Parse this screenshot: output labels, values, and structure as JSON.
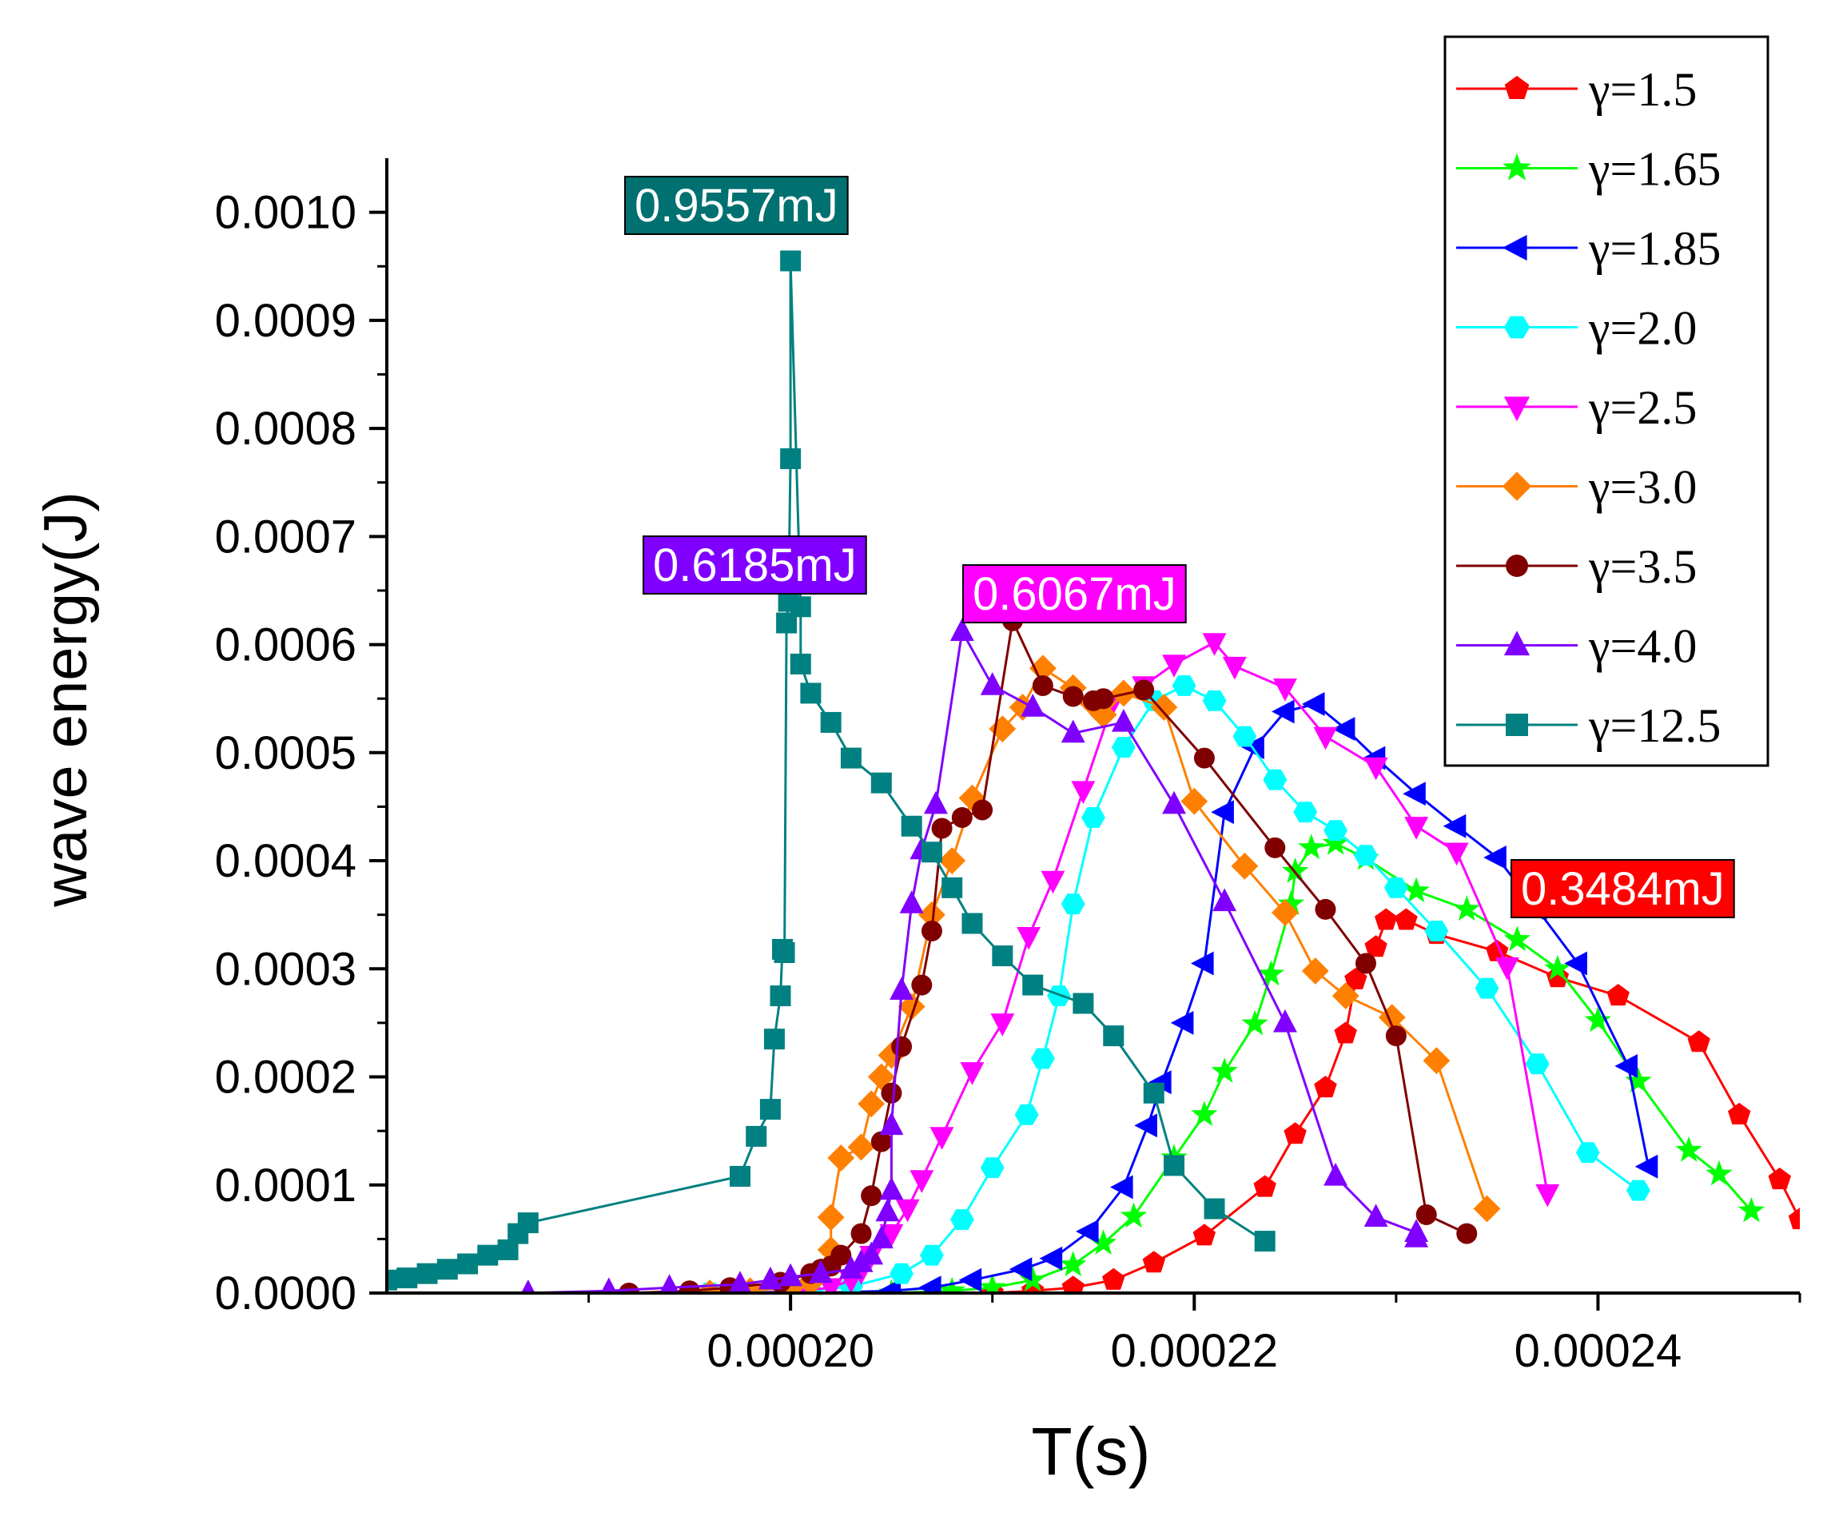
{
  "chart_data": {
    "type": "line",
    "xlabel": "T(s)",
    "ylabel": "wave energy(J)",
    "xlim": [
      0.00018,
      0.00025
    ],
    "ylim": [
      0,
      0.00105
    ],
    "x_ticks": [
      "0.00020",
      "0.00022",
      "0.00024"
    ],
    "x_tick_values": [
      0.0002,
      0.00022,
      0.00024
    ],
    "y_ticks": [
      "0.0000",
      "0.0001",
      "0.0002",
      "0.0003",
      "0.0004",
      "0.0005",
      "0.0006",
      "0.0007",
      "0.0008",
      "0.0009",
      "0.0010"
    ],
    "y_tick_values": [
      0,
      0.0001,
      0.0002,
      0.0003,
      0.0004,
      0.0005,
      0.0006,
      0.0007,
      0.0008,
      0.0009,
      0.001
    ],
    "legend_position": "top-right",
    "series": [
      {
        "name": "γ=1.5",
        "color": "#ff0000",
        "marker": "pentagon",
        "x": [
          0.00021,
          0.000212,
          0.000214,
          0.000216,
          0.000218,
          0.0002205,
          0.0002235,
          0.000225,
          0.0002265,
          0.0002275,
          0.000228,
          0.000229,
          0.0002295,
          0.0002305,
          0.000232,
          0.000235,
          0.000238,
          0.000241,
          0.000245,
          0.000247,
          0.000249,
          0.00025
        ],
        "y": [
          0,
          2e-06,
          5e-06,
          1.2e-05,
          2.8e-05,
          5.3e-05,
          9.8e-05,
          0.000147,
          0.00019,
          0.00024,
          0.00029,
          0.00032,
          0.000345,
          0.000345,
          0.000332,
          0.000316,
          0.000292,
          0.000275,
          0.000232,
          0.000165,
          0.000105,
          6.8e-05
        ]
      },
      {
        "name": "γ=1.65",
        "color": "#00ff00",
        "marker": "star",
        "x": [
          0.000205,
          0.000208,
          0.00021,
          0.000212,
          0.000214,
          0.0002155,
          0.000217,
          0.000219,
          0.0002205,
          0.0002215,
          0.000223,
          0.0002238,
          0.0002248,
          0.000225,
          0.0002258,
          0.000227,
          0.0002285,
          0.000231,
          0.0002335,
          0.000236,
          0.000238,
          0.00024,
          0.000242,
          0.0002445,
          0.000246,
          0.0002476
        ],
        "y": [
          0,
          2e-06,
          5e-06,
          1.2e-05,
          2.6e-05,
          4.6e-05,
          7.1e-05,
          0.000125,
          0.000165,
          0.000205,
          0.000249,
          0.000295,
          0.00036,
          0.00039,
          0.000412,
          0.000416,
          0.000402,
          0.000372,
          0.000355,
          0.000327,
          0.0003,
          0.000252,
          0.000196,
          0.000132,
          0.00011,
          7.6e-05
        ]
      },
      {
        "name": "γ=1.85",
        "color": "#0000ff",
        "marker": "tri-left",
        "x": [
          0.000201,
          0.000205,
          0.000207,
          0.000209,
          0.0002115,
          0.000213,
          0.0002148,
          0.0002165,
          0.0002177,
          0.0002184,
          0.0002195,
          0.0002205,
          0.0002215,
          0.000223,
          0.0002245,
          0.000226,
          0.0002275,
          0.000229,
          0.000231,
          0.000233,
          0.000235,
          0.000237,
          0.000239,
          0.0002415,
          0.0002425
        ],
        "y": [
          0,
          2e-06,
          5e-06,
          1.2e-05,
          2.2e-05,
          3.2e-05,
          5.7e-05,
          9.8e-05,
          0.000155,
          0.000195,
          0.00025,
          0.000305,
          0.000445,
          0.000505,
          0.000538,
          0.000545,
          0.000522,
          0.000495,
          0.000462,
          0.000432,
          0.000403,
          0.000355,
          0.000305,
          0.00021,
          0.000117
        ]
      },
      {
        "name": "γ=2.0",
        "color": "#00ffff",
        "marker": "hexagon",
        "x": [
          0.000196,
          0.000201,
          0.000203,
          0.0002055,
          0.000207,
          0.0002085,
          0.00021,
          0.0002117,
          0.0002125,
          0.0002133,
          0.000214,
          0.000215,
          0.0002165,
          0.000218,
          0.0002195,
          0.000221,
          0.0002225,
          0.000224,
          0.0002255,
          0.000227,
          0.0002285,
          0.00023,
          0.000232,
          0.0002345,
          0.000237,
          0.0002395,
          0.000242
        ],
        "y": [
          0,
          2e-06,
          6e-06,
          1.8e-05,
          3.5e-05,
          6.8e-05,
          0.000116,
          0.000165,
          0.000217,
          0.000275,
          0.00036,
          0.00044,
          0.000505,
          0.000548,
          0.000562,
          0.000548,
          0.000515,
          0.000475,
          0.000445,
          0.000428,
          0.000405,
          0.000375,
          0.000335,
          0.000282,
          0.000212,
          0.00013,
          9.5e-05
        ]
      },
      {
        "name": "γ=2.5",
        "color": "#ff00ff",
        "marker": "tri-down",
        "x": [
          0.000198,
          0.0002005,
          0.000202,
          0.000203,
          0.0002035,
          0.000204,
          0.000205,
          0.0002058,
          0.0002065,
          0.0002075,
          0.000209,
          0.0002105,
          0.0002118,
          0.000213,
          0.0002145,
          0.000216,
          0.0002175,
          0.000219,
          0.000221,
          0.000222,
          0.0002245,
          0.0002265,
          0.000229,
          0.000231,
          0.000233,
          0.0002355,
          0.0002375
        ],
        "y": [
          0,
          2e-06,
          5e-06,
          1.2e-05,
          2e-05,
          3.5e-05,
          5.5e-05,
          7.8e-05,
          0.000105,
          0.000145,
          0.000205,
          0.00025,
          0.00033,
          0.000382,
          0.000465,
          0.000548,
          0.000562,
          0.000582,
          0.000602,
          0.00058,
          0.00056,
          0.000515,
          0.000487,
          0.000432,
          0.000408,
          0.000302,
          9.2e-05
        ]
      },
      {
        "name": "γ=3.0",
        "color": "#ff8000",
        "marker": "diamond",
        "x": [
          0.000196,
          0.000198,
          0.0002,
          0.000201,
          0.0002015,
          0.000202,
          0.000202,
          0.0002025,
          0.0002035,
          0.000204,
          0.0002045,
          0.000205,
          0.000206,
          0.000207,
          0.000208,
          0.000209,
          0.0002105,
          0.0002115,
          0.0002125,
          0.000214,
          0.000215,
          0.0002155,
          0.0002165,
          0.0002185,
          0.00022,
          0.0002225,
          0.0002245,
          0.000226,
          0.0002275,
          0.0002298,
          0.000232,
          0.0002345
        ],
        "y": [
          0,
          2e-06,
          5e-06,
          1e-05,
          2e-05,
          4e-05,
          7e-05,
          0.000125,
          0.000135,
          0.000175,
          0.0002,
          0.00022,
          0.000265,
          0.00035,
          0.0004,
          0.000458,
          0.000522,
          0.000542,
          0.000578,
          0.00056,
          0.000545,
          0.000535,
          0.000555,
          0.000542,
          0.000455,
          0.000395,
          0.000352,
          0.000298,
          0.000275,
          0.000255,
          0.000215,
          7.8e-05
        ]
      },
      {
        "name": "γ=3.5",
        "color": "#800000",
        "marker": "circle",
        "x": [
          0.000192,
          0.000195,
          0.000197,
          0.0001995,
          0.000201,
          0.0002015,
          0.000202,
          0.0002025,
          0.0002035,
          0.000204,
          0.0002045,
          0.000205,
          0.0002055,
          0.0002065,
          0.000207,
          0.0002075,
          0.0002085,
          0.0002095,
          0.000211,
          0.0002125,
          0.000214,
          0.000215,
          0.0002155,
          0.0002175,
          0.0002205,
          0.000224,
          0.0002265,
          0.0002285,
          0.00023,
          0.0002315,
          0.0002335
        ],
        "y": [
          0,
          2e-06,
          5e-06,
          1e-05,
          1.8e-05,
          2.2e-05,
          2.5e-05,
          3.5e-05,
          5.5e-05,
          9e-05,
          0.00014,
          0.000185,
          0.000228,
          0.000285,
          0.000335,
          0.00043,
          0.00044,
          0.000447,
          0.000622,
          0.000562,
          0.000552,
          0.000548,
          0.00055,
          0.000558,
          0.000495,
          0.000412,
          0.000355,
          0.000305,
          0.000238,
          7.25e-05,
          5.5e-05
        ]
      },
      {
        "name": "γ=4.0",
        "color": "#8000ff",
        "marker": "tri-up",
        "x": [
          0.000187,
          0.000191,
          0.000194,
          0.0001975,
          0.000199,
          0.0002,
          0.0002015,
          0.000203,
          0.0002035,
          0.000204,
          0.0002045,
          0.0002048,
          0.000205,
          0.000205,
          0.0002055,
          0.000206,
          0.0002065,
          0.0002072,
          0.0002085,
          0.00021,
          0.000212,
          0.000214,
          0.0002165,
          0.000219,
          0.0002215,
          0.0002245,
          0.000227,
          0.000229,
          0.000231,
          0.000231
        ],
        "y": [
          0,
          2e-06,
          5e-06,
          8e-06,
          1.2e-05,
          1.5e-05,
          1.8e-05,
          2.2e-05,
          2.8e-05,
          3.5e-05,
          5e-05,
          7.5e-05,
          9.5e-05,
          0.000155,
          0.00028,
          0.00036,
          0.00041,
          0.000452,
          0.000612,
          0.000562,
          0.000542,
          0.000518,
          0.000528,
          0.000452,
          0.000362,
          0.00025,
          0.000108,
          7e-05,
          5.6e-05,
          5.1e-05
        ]
      },
      {
        "name": "γ=12.5",
        "color": "#008080",
        "marker": "square",
        "x": [
          0.00018,
          0.000181,
          0.000182,
          0.000183,
          0.000184,
          0.000185,
          0.000186,
          0.0001865,
          0.000187,
          0.0001975,
          0.0001983,
          0.000199,
          0.0001992,
          0.0001995,
          0.0001996,
          0.0001997,
          0.0001998,
          0.0001999,
          0.0002,
          0.0002,
          0.0002005,
          0.0002005,
          0.000201,
          0.000202,
          0.000203,
          0.0002045,
          0.000206,
          0.000207,
          0.000208,
          0.000209,
          0.0002105,
          0.000212,
          0.0002145,
          0.000216,
          0.000218,
          0.000219,
          0.000221,
          0.0002235
        ],
        "y": [
          1.2e-05,
          1.4e-05,
          1.8e-05,
          2.2e-05,
          2.7e-05,
          3.5e-05,
          4e-05,
          5.5e-05,
          6.5e-05,
          0.000108,
          0.000145,
          0.00017,
          0.000235,
          0.000275,
          0.000318,
          0.000315,
          0.00062,
          0.00064,
          0.000772,
          0.000955,
          0.000635,
          0.000582,
          0.000555,
          0.000528,
          0.000495,
          0.000472,
          0.000432,
          0.000408,
          0.000375,
          0.000342,
          0.000312,
          0.000285,
          0.000268,
          0.000238,
          0.000185,
          0.000118,
          7.8e-05,
          4.8e-05
        ]
      }
    ],
    "annotations": [
      {
        "text": "0.9557mJ",
        "color": "#007070"
      },
      {
        "text": "0.6185mJ",
        "color": "#8000ff"
      },
      {
        "text": "0.6067mJ",
        "color": "#ff00ff"
      },
      {
        "text": "0.3484mJ",
        "color": "#ff0000"
      }
    ]
  }
}
